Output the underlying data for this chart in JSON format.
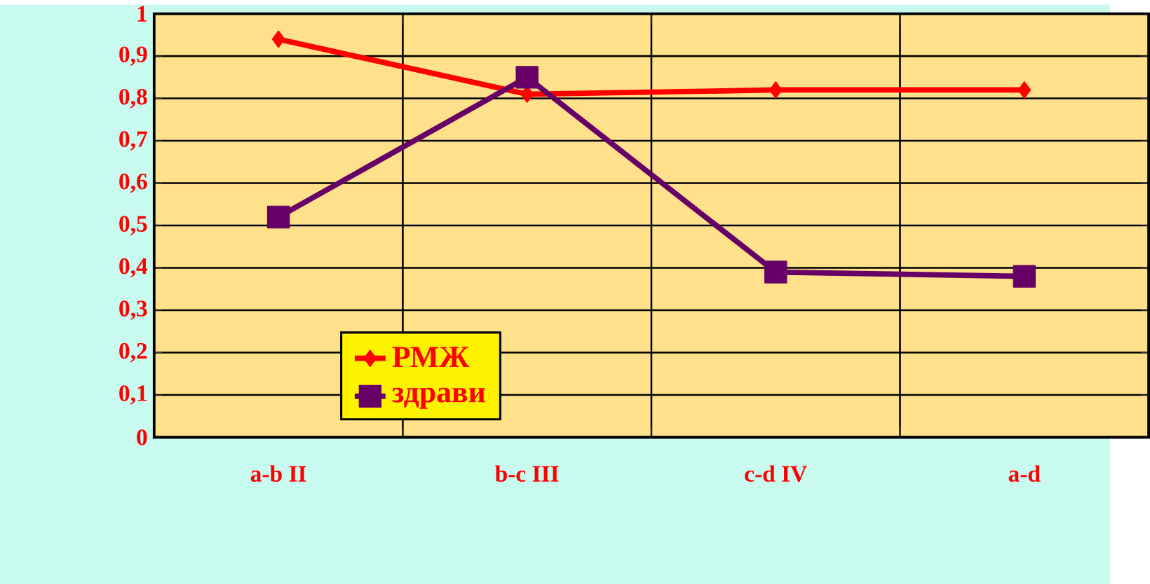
{
  "chart_data": {
    "type": "line",
    "categories": [
      "a-b II",
      "b-c III",
      "c-d IV",
      "a-d"
    ],
    "series": [
      {
        "name": "РМЖ",
        "color": "#ff0000",
        "marker": "diamond",
        "values": [
          0.94,
          0.81,
          0.82,
          0.82
        ]
      },
      {
        "name": "здрави",
        "color": "#660066",
        "marker": "square",
        "values": [
          0.52,
          0.85,
          0.39,
          0.38
        ]
      }
    ],
    "ylim": [
      0,
      1
    ],
    "yticks": [
      {
        "value": 0,
        "label": "0"
      },
      {
        "value": 0.1,
        "label": "0,1"
      },
      {
        "value": 0.2,
        "label": "0,2"
      },
      {
        "value": 0.3,
        "label": "0,3"
      },
      {
        "value": 0.4,
        "label": "0,4"
      },
      {
        "value": 0.5,
        "label": "0,5"
      },
      {
        "value": 0.6,
        "label": "0,6"
      },
      {
        "value": 0.7,
        "label": "0,7"
      },
      {
        "value": 0.8,
        "label": "0,8"
      },
      {
        "value": 0.9,
        "label": "0,9"
      },
      {
        "value": 1,
        "label": "1"
      }
    ],
    "grid": true,
    "legend": "bottom left",
    "line_style": "solid"
  }
}
